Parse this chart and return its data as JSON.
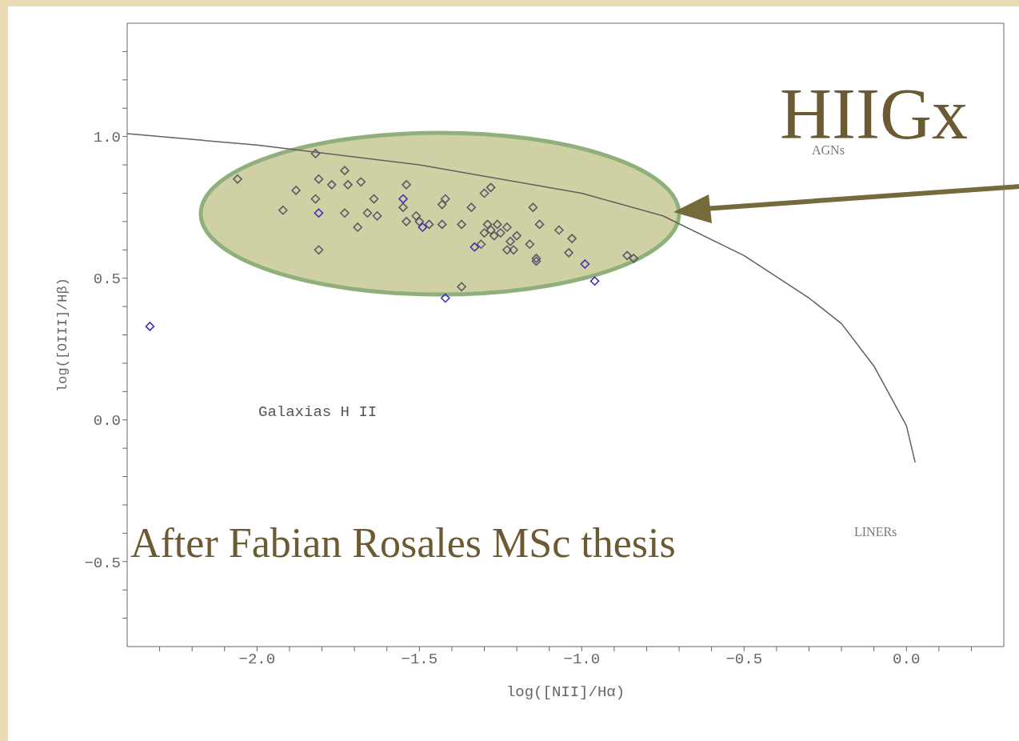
{
  "chart_data": {
    "type": "scatter",
    "xlabel": "log([NII]/Hα)",
    "ylabel": "log([OIII]/Hβ)",
    "xlim": [
      -2.4,
      0.3
    ],
    "xticks": [
      {
        "value": -2.3,
        "label": null
      },
      {
        "value": -2.2,
        "label": null
      },
      {
        "value": -2.1,
        "label": null
      },
      {
        "value": -2.0,
        "label": "−2.0"
      },
      {
        "value": -1.9,
        "label": null
      },
      {
        "value": -1.8,
        "label": null
      },
      {
        "value": -1.7,
        "label": null
      },
      {
        "value": -1.6,
        "label": null
      },
      {
        "value": -1.5,
        "label": "−1.5"
      },
      {
        "value": -1.4,
        "label": null
      },
      {
        "value": -1.3,
        "label": null
      },
      {
        "value": -1.2,
        "label": null
      },
      {
        "value": -1.1,
        "label": null
      },
      {
        "value": -1.0,
        "label": "−1.0"
      },
      {
        "value": -0.9,
        "label": null
      },
      {
        "value": -0.8,
        "label": null
      },
      {
        "value": -0.7,
        "label": null
      },
      {
        "value": -0.6,
        "label": null
      },
      {
        "value": -0.5,
        "label": "−0.5"
      },
      {
        "value": -0.4,
        "label": null
      },
      {
        "value": -0.3,
        "label": null
      },
      {
        "value": -0.2,
        "label": null
      },
      {
        "value": -0.1,
        "label": null
      },
      {
        "value": 0,
        "label": "0.0"
      },
      {
        "value": 0.1,
        "label": null
      },
      {
        "value": 0.2,
        "label": null
      }
    ],
    "ylim": [
      -0.8,
      1.4
    ],
    "yticks": [
      {
        "value": -0.7,
        "label": null
      },
      {
        "value": -0.6,
        "label": null
      },
      {
        "value": -0.5,
        "label": "−0.5"
      },
      {
        "value": -0.4,
        "label": null
      },
      {
        "value": -0.3,
        "label": null
      },
      {
        "value": -0.2,
        "label": null
      },
      {
        "value": -0.1,
        "label": null
      },
      {
        "value": 0,
        "label": "0.0"
      },
      {
        "value": 0.1,
        "label": null
      },
      {
        "value": 0.2,
        "label": null
      },
      {
        "value": 0.3,
        "label": null
      },
      {
        "value": 0.4,
        "label": null
      },
      {
        "value": 0.5,
        "label": "0.5"
      },
      {
        "value": 0.6,
        "label": null
      },
      {
        "value": 0.7,
        "label": null
      },
      {
        "value": 0.8,
        "label": null
      },
      {
        "value": 0.9,
        "label": null
      },
      {
        "value": 1.0,
        "label": "1.0"
      },
      {
        "value": 1.1,
        "label": null
      },
      {
        "value": 1.2,
        "label": null
      },
      {
        "value": 1.3,
        "label": null
      }
    ],
    "marker": "diamond",
    "grid": false,
    "series": [
      {
        "type": "line",
        "color": "#606060",
        "marker": "none",
        "x": [
          -2.4,
          -2.0,
          -1.5,
          -1.0,
          -0.75,
          -0.5,
          -0.3,
          -0.2,
          -0.1,
          0.0,
          0.027
        ],
        "values": [
          1.01,
          0.97,
          0.9,
          0.8,
          0.72,
          0.58,
          0.43,
          0.34,
          0.19,
          -0.02,
          -0.15
        ]
      },
      {
        "color": "#5a5a66",
        "x": [
          -1.82,
          -2.06,
          -1.73,
          -1.81,
          -1.88,
          -1.77,
          -1.72,
          -1.68,
          -1.54,
          -1.82,
          -1.64,
          -1.42,
          -1.43,
          -1.92,
          -1.73,
          -1.66,
          -1.63,
          -1.55,
          -1.54,
          -1.51,
          -1.47,
          -1.43,
          -1.69,
          -1.81,
          -1.5,
          -1.28,
          -1.3,
          -1.34,
          -1.15,
          -1.37,
          -1.29,
          -1.26,
          -1.23,
          -1.28,
          -1.3,
          -1.25,
          -1.27,
          -1.2,
          -1.22,
          -1.13,
          -1.07,
          -1.03,
          -1.31,
          -1.16,
          -1.23,
          -1.21,
          -1.04,
          -1.14,
          -1.14,
          -0.86,
          -0.84,
          -1.37
        ],
        "values": [
          0.94,
          0.85,
          0.88,
          0.85,
          0.81,
          0.83,
          0.83,
          0.84,
          0.83,
          0.78,
          0.78,
          0.78,
          0.76,
          0.74,
          0.73,
          0.73,
          0.72,
          0.75,
          0.7,
          0.72,
          0.69,
          0.69,
          0.68,
          0.6,
          0.7,
          0.82,
          0.8,
          0.75,
          0.75,
          0.69,
          0.69,
          0.69,
          0.68,
          0.67,
          0.66,
          0.66,
          0.65,
          0.65,
          0.63,
          0.69,
          0.67,
          0.64,
          0.62,
          0.62,
          0.6,
          0.6,
          0.59,
          0.57,
          0.56,
          0.58,
          0.57,
          0.47
        ]
      },
      {
        "color": "#3d2fb5",
        "x": [
          -1.55,
          -1.81,
          -1.49,
          -1.42,
          -1.33,
          -0.99,
          -0.96,
          -2.33
        ],
        "values": [
          0.78,
          0.73,
          0.68,
          0.43,
          0.61,
          0.55,
          0.49,
          0.33
        ]
      }
    ],
    "annotations": [
      "AGNs",
      "Galaxias H II",
      "LINERs",
      "HIIGx",
      "After Fabian Rosales MSc thesis"
    ]
  }
}
